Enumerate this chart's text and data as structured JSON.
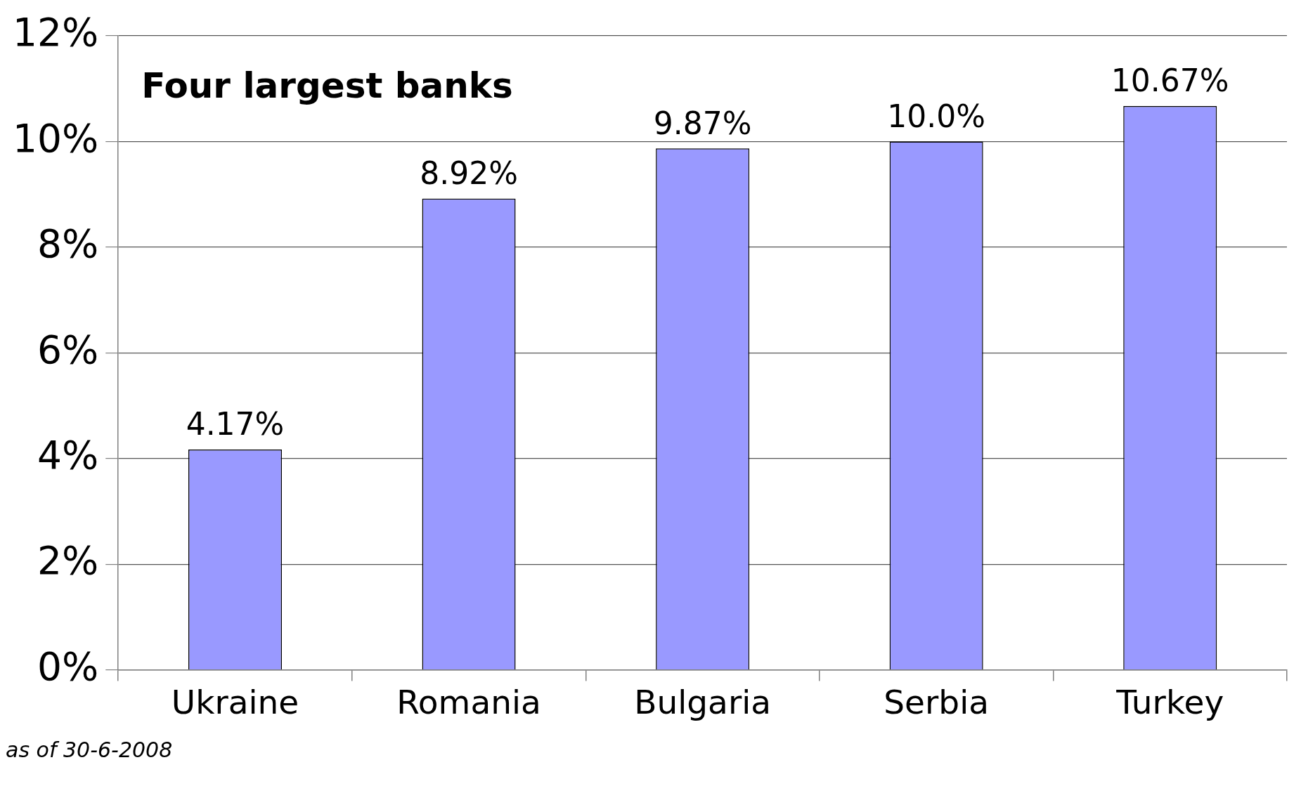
{
  "chart_data": {
    "type": "bar",
    "title": "Four largest banks",
    "categories": [
      "Ukraine",
      "Romania",
      "Bulgaria",
      "Serbia",
      "Turkey"
    ],
    "values": [
      4.17,
      8.92,
      9.87,
      10.0,
      10.67
    ],
    "value_labels": [
      "4.17%",
      "8.92%",
      "9.87%",
      "10.0%",
      "10.67%"
    ],
    "color": "#9999ff",
    "ylim": [
      0,
      12
    ],
    "yticks": [
      {
        "value": 0,
        "label": "0%"
      },
      {
        "value": 2,
        "label": "2%"
      },
      {
        "value": 4,
        "label": "4%"
      },
      {
        "value": 6,
        "label": "6%"
      },
      {
        "value": 8,
        "label": "8%"
      },
      {
        "value": 10,
        "label": "10%"
      },
      {
        "value": 12,
        "label": "12%"
      }
    ],
    "grid": "y",
    "legend": false,
    "annotations": [
      "as of 30-6-2008"
    ]
  }
}
